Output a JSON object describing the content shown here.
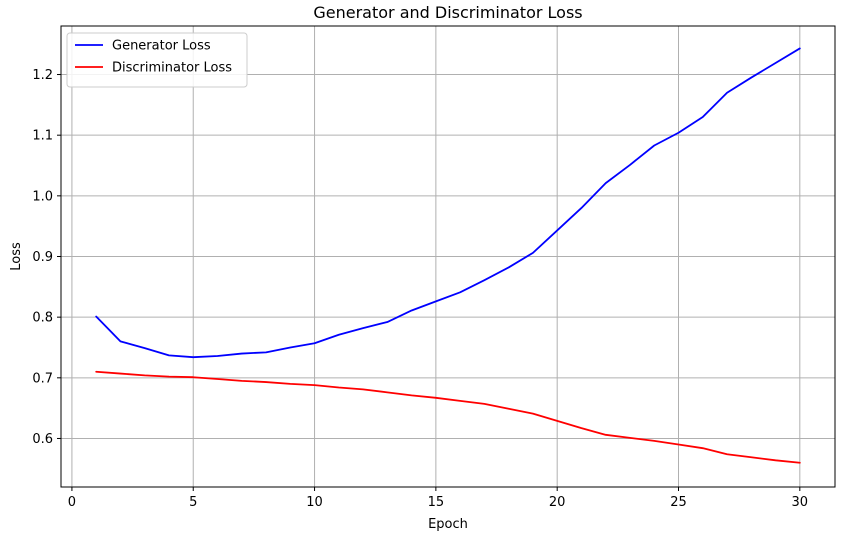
{
  "chart_data": {
    "type": "line",
    "title": "Generator and Discriminator Loss",
    "xlabel": "Epoch",
    "ylabel": "Loss",
    "xlim": [
      -0.45,
      31.45
    ],
    "ylim": [
      0.52,
      1.28
    ],
    "xticks": [
      0,
      5,
      10,
      15,
      20,
      25,
      30
    ],
    "yticks": [
      0.6,
      0.7,
      0.8,
      0.9,
      1.0,
      1.1,
      1.2
    ],
    "xtick_labels": [
      "0",
      "5",
      "10",
      "15",
      "20",
      "25",
      "30"
    ],
    "ytick_labels": [
      "0.6",
      "0.7",
      "0.8",
      "0.9",
      "1.0",
      "1.1",
      "1.2"
    ],
    "grid": true,
    "legend_position": "top-left",
    "x": [
      1,
      2,
      3,
      4,
      5,
      6,
      7,
      8,
      9,
      10,
      11,
      12,
      13,
      14,
      15,
      16,
      17,
      18,
      19,
      20,
      21,
      22,
      23,
      24,
      25,
      26,
      27,
      28,
      29,
      30
    ],
    "series": [
      {
        "name": "Generator Loss",
        "color": "#0000ff",
        "values": [
          0.801,
          0.76,
          0.749,
          0.737,
          0.734,
          0.736,
          0.74,
          0.742,
          0.75,
          0.757,
          0.771,
          0.782,
          0.792,
          0.811,
          0.826,
          0.841,
          0.861,
          0.882,
          0.906,
          0.943,
          0.98,
          1.021,
          1.051,
          1.083,
          1.104,
          1.13,
          1.17,
          1.195,
          1.219,
          1.243
        ]
      },
      {
        "name": "Discriminator Loss",
        "color": "#ff0000",
        "values": [
          0.71,
          0.707,
          0.704,
          0.702,
          0.701,
          0.698,
          0.695,
          0.693,
          0.69,
          0.688,
          0.684,
          0.681,
          0.676,
          0.671,
          0.667,
          0.662,
          0.657,
          0.649,
          0.641,
          0.629,
          0.617,
          0.606,
          0.601,
          0.596,
          0.59,
          0.584,
          0.574,
          0.569,
          0.564,
          0.56
        ]
      }
    ]
  }
}
